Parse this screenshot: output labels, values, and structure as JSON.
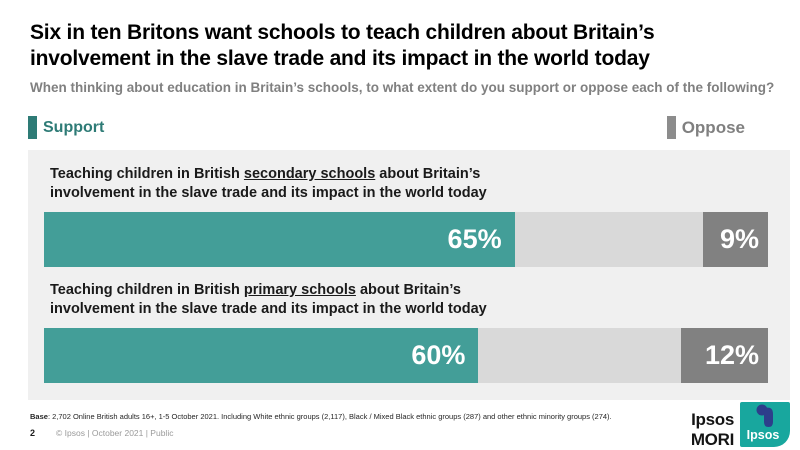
{
  "header": {
    "title_line1": "Six in ten Britons want schools to teach children about Britain’s",
    "title_line2": "involvement in the slave trade and its impact in the world today",
    "subtitle": "When thinking about education in Britain’s schools, to what extent do you support or oppose each of the following?"
  },
  "legend": {
    "support_label": "Support",
    "oppose_label": "Oppose"
  },
  "chart_data": {
    "type": "bar",
    "orientation": "horizontal_stacked",
    "categories": [
      "Teaching children in British secondary schools about Britain’s involvement in the slave trade and its impact in the world today",
      "Teaching children in British primary schools about Britain’s involvement in the slave trade and its impact in the world today"
    ],
    "series": [
      {
        "name": "Support",
        "values": [
          65,
          60
        ],
        "color": "#439E98"
      },
      {
        "name": "",
        "values": [
          26,
          28
        ],
        "color": "#D9D9D9",
        "note": "unlabeled remainder segment"
      },
      {
        "name": "Oppose",
        "values": [
          9,
          12
        ],
        "color": "#818181"
      }
    ],
    "value_suffix": "%",
    "xlim": [
      0,
      100
    ],
    "grid": false,
    "legend_position": "top",
    "data_labels": [
      "65%",
      "9%",
      "60%",
      "12%"
    ]
  },
  "bars": [
    {
      "label_before": "Teaching children in British ",
      "label_underlined": "secondary schools",
      "label_after": " about Britain’s",
      "label_line2": "involvement in the slave trade and its impact in the world today",
      "support_display": "65%",
      "oppose_display": "9%",
      "support_width": 65,
      "neutral_width": 26,
      "oppose_width": 9
    },
    {
      "label_before": "Teaching children in British ",
      "label_underlined": "primary schools",
      "label_after": " about Britain’s",
      "label_line2": "involvement in the slave trade and its impact in the world today",
      "support_display": "60%",
      "oppose_display": "12%",
      "support_width": 60,
      "neutral_width": 28,
      "oppose_width": 12
    }
  ],
  "footer": {
    "base_label": "Base",
    "base_text": ": 2,702 Online British adults 16+, 1-5 October 2021. Including White ethnic groups (2,117), Black / Mixed Black ethnic groups (287) and other ethnic minority groups (274).",
    "page_number": "2",
    "copyright": "© Ipsos | October 2021 | Public",
    "brand": "Ipsos MORI",
    "logo_text": "Ipsos"
  },
  "colors": {
    "support_teal": "#439E98",
    "support_dark_teal": "#2E7B76",
    "neutral_gray": "#D9D9D9",
    "oppose_dark_gray": "#818181",
    "oppose_legend_gray": "#808080",
    "panel_background": "#F0F0F0",
    "subtitle_gray": "#808080",
    "logo_teal": "#18A79E",
    "logo_navy": "#2D3E8B"
  }
}
